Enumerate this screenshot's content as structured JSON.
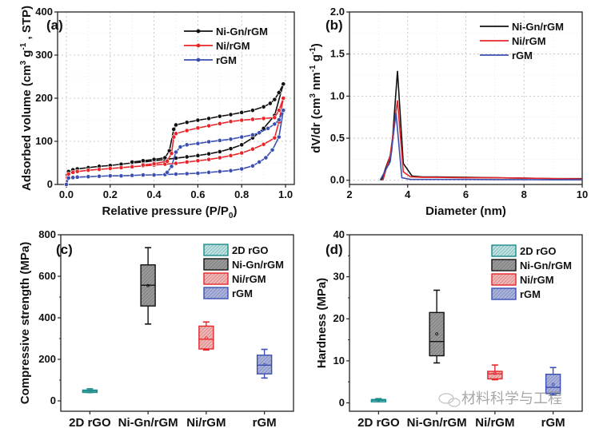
{
  "watermark": "材料科学与工程",
  "chart_data": [
    {
      "panel": "(a)",
      "type": "line",
      "xlabel": "Relative pressure (P/P0)",
      "xlabel_main": "Relative pressure (P/P",
      "xlabel_sub": "0",
      "xlabel_close": ")",
      "ylabel": "Adsorbed volume (cm3 g-1, STP)",
      "ylabel_parts": [
        "Adsorbed volume (cm",
        "3",
        " g",
        "-1",
        " , STP)"
      ],
      "xlim": [
        -0.04,
        1.04
      ],
      "ylim": [
        0,
        400
      ],
      "xticks": [
        0.0,
        0.2,
        0.4,
        0.6,
        0.8,
        1.0
      ],
      "xtick_labels": [
        "0.0",
        "0.2",
        "0.4",
        "0.6",
        "0.8",
        "1.0"
      ],
      "yticks": [
        0,
        100,
        200,
        300,
        400
      ],
      "ytick_labels": [
        "0",
        "100",
        "200",
        "300",
        "400"
      ],
      "grid": true,
      "legend_position": "top-right",
      "series": [
        {
          "name": "Ni-Gn/rGM",
          "color": "#111111",
          "adsorption": {
            "x": [
              0.0,
              0.005,
              0.01,
              0.03,
              0.05,
              0.1,
              0.15,
              0.2,
              0.25,
              0.3,
              0.35,
              0.4,
              0.45,
              0.5,
              0.55,
              0.6,
              0.65,
              0.7,
              0.75,
              0.8,
              0.85,
              0.9,
              0.95,
              0.99
            ],
            "y": [
              0,
              22,
              30,
              34,
              36,
              39,
              42,
              44,
              47,
              50,
              52,
              55,
              58,
              61,
              64,
              67,
              71,
              76,
              83,
              92,
              108,
              130,
              160,
              233
            ]
          },
          "desorption": {
            "x": [
              0.99,
              0.97,
              0.95,
              0.93,
              0.9,
              0.85,
              0.8,
              0.75,
              0.7,
              0.65,
              0.6,
              0.55,
              0.5,
              0.49,
              0.47,
              0.45,
              0.4,
              0.35,
              0.3
            ],
            "y": [
              233,
              213,
              197,
              188,
              180,
              172,
              167,
              162,
              158,
              153,
              149,
              144,
              138,
              128,
              78,
              62,
              58,
              55,
              52
            ]
          }
        },
        {
          "name": "Ni/rGM",
          "color": "#e8262a",
          "adsorption": {
            "x": [
              0.0,
              0.005,
              0.01,
              0.03,
              0.05,
              0.1,
              0.15,
              0.2,
              0.25,
              0.3,
              0.35,
              0.4,
              0.45,
              0.5,
              0.55,
              0.6,
              0.65,
              0.7,
              0.75,
              0.8,
              0.85,
              0.9,
              0.95,
              0.97,
              0.99
            ],
            "y": [
              0,
              16,
              24,
              28,
              30,
              33,
              35,
              37,
              39,
              41,
              43,
              45,
              47,
              49,
              52,
              55,
              58,
              62,
              67,
              73,
              82,
              93,
              108,
              145,
              200
            ]
          },
          "desorption": {
            "x": [
              0.99,
              0.97,
              0.95,
              0.9,
              0.85,
              0.8,
              0.75,
              0.7,
              0.65,
              0.6,
              0.55,
              0.5,
              0.49,
              0.48,
              0.46,
              0.4,
              0.35
            ],
            "y": [
              200,
              172,
              155,
              153,
              151,
              149,
              146,
              141,
              136,
              131,
              125,
              118,
              110,
              72,
              54,
              48,
              45
            ]
          }
        },
        {
          "name": "rGM",
          "color": "#3a4fb0",
          "adsorption": {
            "x": [
              0.0,
              0.01,
              0.03,
              0.05,
              0.1,
              0.15,
              0.2,
              0.25,
              0.3,
              0.35,
              0.4,
              0.45,
              0.5,
              0.55,
              0.6,
              0.65,
              0.7,
              0.75,
              0.8,
              0.85,
              0.88,
              0.91,
              0.94,
              0.97,
              0.99
            ],
            "y": [
              0,
              15,
              16,
              17,
              18,
              19,
              20,
              20,
              21,
              22,
              22,
              23,
              24,
              25,
              26,
              28,
              30,
              32,
              36,
              43,
              52,
              62,
              80,
              110,
              172
            ]
          },
          "desorption": {
            "x": [
              0.99,
              0.97,
              0.95,
              0.92,
              0.88,
              0.85,
              0.8,
              0.75,
              0.7,
              0.65,
              0.6,
              0.55,
              0.52,
              0.5,
              0.48,
              0.46
            ],
            "y": [
              172,
              150,
              140,
              130,
              120,
              115,
              110,
              105,
              102,
              99,
              95,
              92,
              87,
              75,
              42,
              28
            ]
          }
        }
      ]
    },
    {
      "panel": "(b)",
      "type": "line",
      "xlabel": "Diameter (nm)",
      "ylabel": "dV/dr (cm3 nm-1 g-1)",
      "ylabel_parts": [
        "dV/dr (cm",
        "3",
        " nm",
        "-1",
        " g",
        "-1",
        ")"
      ],
      "xlim": [
        2,
        10
      ],
      "ylim": [
        -0.05,
        2.0
      ],
      "xticks": [
        2,
        4,
        6,
        8,
        10
      ],
      "xtick_labels": [
        "2",
        "4",
        "6",
        "8",
        "10"
      ],
      "yticks": [
        0.0,
        0.5,
        1.0,
        1.5,
        2.0
      ],
      "ytick_labels": [
        "0.0",
        "0.5",
        "1.0",
        "1.5",
        "2.0"
      ],
      "grid": true,
      "legend_position": "top-right",
      "series": [
        {
          "name": "Ni-Gn/rGM",
          "color": "#111111",
          "x": [
            3.1,
            3.35,
            3.35,
            3.45,
            3.65,
            3.85,
            4.15,
            4.5,
            5.0,
            6.0,
            7.0,
            8.0,
            9.0,
            10.0
          ],
          "y": [
            0.0,
            0.25,
            0.18,
            0.35,
            1.3,
            0.2,
            0.05,
            0.04,
            0.04,
            0.035,
            0.03,
            0.025,
            0.02,
            0.02
          ]
        },
        {
          "name": "Ni/rGM",
          "color": "#e8262a",
          "x": [
            3.15,
            3.4,
            3.65,
            3.85,
            4.1,
            4.5,
            5.0,
            6.0,
            7.0,
            8.0,
            9.0,
            10.0
          ],
          "y": [
            0.0,
            0.3,
            0.95,
            0.1,
            0.04,
            0.035,
            0.035,
            0.03,
            0.03,
            0.025,
            0.02,
            0.015
          ]
        },
        {
          "name": "rGM",
          "color": "#3a4fb0",
          "x": [
            3.05,
            3.4,
            3.6,
            3.8,
            4.1,
            5.0,
            6.0,
            7.0,
            8.0,
            9.0,
            10.0
          ],
          "y": [
            0.0,
            0.22,
            0.8,
            0.03,
            0.01,
            0.01,
            0.01,
            0.008,
            0.008,
            0.005,
            0.005
          ]
        }
      ]
    },
    {
      "panel": "(c)",
      "type": "box",
      "xlabel": "",
      "ylabel": "Compressive strength (MPa)",
      "ylim": [
        -50,
        800
      ],
      "yticks": [
        0,
        200,
        400,
        600,
        800
      ],
      "ytick_labels": [
        "0",
        "200",
        "400",
        "600",
        "800"
      ],
      "categories": [
        "2D rGO",
        "Ni-Gn/rGM",
        "Ni/rGM",
        "rGM"
      ],
      "legend_position": "top-right",
      "boxes": [
        {
          "name": "2D rGO",
          "color": "#1b8c8c",
          "fill": "#b9e3e3",
          "min": 40,
          "q1": 42,
          "median": 47,
          "mean": 47,
          "q3": 52,
          "max": 58
        },
        {
          "name": "Ni-Gn/rGM",
          "color": "#111111",
          "fill": "#9a9a9a",
          "min": 370,
          "q1": 457,
          "median": 557,
          "mean": 555,
          "q3": 655,
          "max": 738
        },
        {
          "name": "Ni/rGM",
          "color": "#e8262a",
          "fill": "#f6b3b3",
          "min": 245,
          "q1": 250,
          "median": 297,
          "mean": 303,
          "q3": 360,
          "max": 380
        },
        {
          "name": "rGM",
          "color": "#3a4fb0",
          "fill": "#a9b2e0",
          "min": 110,
          "q1": 130,
          "median": 172,
          "mean": 175,
          "q3": 220,
          "max": 248
        }
      ]
    },
    {
      "panel": "(d)",
      "type": "box",
      "xlabel": "",
      "ylabel": "Hardness (MPa)",
      "ylim": [
        -2,
        40
      ],
      "yticks": [
        0,
        10,
        20,
        30,
        40
      ],
      "ytick_labels": [
        "0",
        "10",
        "20",
        "30",
        "40"
      ],
      "categories": [
        "2D rGO",
        "Ni-Gn/rGM",
        "Ni/rGM",
        "rGM"
      ],
      "legend_position": "top-right",
      "boxes": [
        {
          "name": "2D rGO",
          "color": "#1b8c8c",
          "fill": "#b9e3e3",
          "min": 0.3,
          "q1": 0.4,
          "median": 0.6,
          "mean": 0.6,
          "q3": 0.8,
          "max": 1.0
        },
        {
          "name": "Ni-Gn/rGM",
          "color": "#111111",
          "fill": "#9a9a9a",
          "min": 9.5,
          "q1": 11.2,
          "median": 14.6,
          "mean": 16.4,
          "q3": 21.5,
          "max": 26.8
        },
        {
          "name": "Ni/rGM",
          "color": "#e8262a",
          "fill": "#f6b3b3",
          "min": 5.5,
          "q1": 5.7,
          "median": 6.9,
          "mean": 7.0,
          "q3": 7.5,
          "max": 9.0
        },
        {
          "name": "rGM",
          "color": "#3a4fb0",
          "fill": "#a9b2e0",
          "min": 1.9,
          "q1": 2.2,
          "median": 3.7,
          "mean": 4.4,
          "q3": 6.8,
          "max": 8.4
        }
      ]
    }
  ]
}
